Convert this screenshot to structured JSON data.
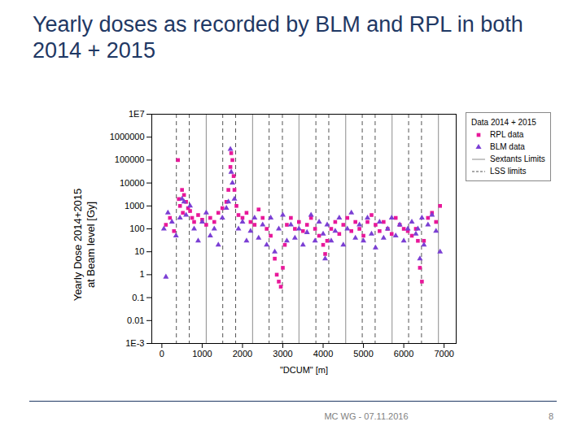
{
  "title": "Yearly doses as recorded by BLM and RPL in both 2014 + 2015",
  "footer": "MC WG - 07.11.2016",
  "page_number": "8",
  "chart_data": {
    "type": "scatter",
    "x_label": "\"DCUM\" [m]",
    "y_label": "Yearly Dose 2014+2015\nat Beam level [Gy]",
    "legend_title": "Data 2014 + 2015",
    "legend": "right",
    "log": "y",
    "grid": false,
    "xlim": [
      -250,
      7300
    ],
    "xticks": [
      0,
      1000,
      2000,
      3000,
      4000,
      5000,
      6000,
      7000
    ],
    "ylim": [
      0.001,
      10000000
    ],
    "yticks": [
      {
        "value": 0.001,
        "label": "1E-3"
      },
      0.01,
      0.1,
      1,
      10,
      100,
      1000,
      10000,
      100000,
      1000000,
      {
        "value": 10000000,
        "label": "1E7"
      }
    ],
    "series": [
      {
        "name": "RPL data",
        "color": "#e8189a",
        "marker": "square",
        "x": [
          100,
          200,
          300,
          400,
          420,
          450,
          500,
          520,
          550,
          600,
          650,
          700,
          750,
          800,
          900,
          1000,
          1100,
          1200,
          1300,
          1400,
          1500,
          1600,
          1650,
          1700,
          1720,
          1750,
          1780,
          1800,
          1850,
          1900,
          2000,
          2100,
          2200,
          2300,
          2400,
          2500,
          2600,
          2700,
          2800,
          2850,
          2900,
          2950,
          3000,
          3050,
          3100,
          3200,
          3300,
          3400,
          3500,
          3600,
          3700,
          3800,
          3900,
          4000,
          4050,
          4100,
          4200,
          4300,
          4400,
          4500,
          4600,
          4700,
          4800,
          4900,
          5000,
          5100,
          5200,
          5300,
          5400,
          5500,
          5600,
          5700,
          5800,
          5900,
          6000,
          6100,
          6200,
          6300,
          6350,
          6400,
          6450,
          6500,
          6600,
          6700,
          6800,
          6900
        ],
        "values": [
          150,
          300,
          80,
          100000,
          2000,
          1000,
          5000,
          500,
          3000,
          1500,
          800,
          600,
          300,
          200,
          400,
          250,
          150,
          300,
          200,
          500,
          800,
          1500,
          5000,
          50000,
          200000,
          100000,
          20000,
          5000,
          1000,
          400,
          300,
          500,
          200,
          150,
          700,
          300,
          100,
          50,
          5,
          1,
          0.5,
          0.3,
          2,
          20,
          150,
          300,
          100,
          200,
          80,
          150,
          300,
          100,
          50,
          20,
          8,
          30,
          100,
          200,
          60,
          150,
          300,
          80,
          200,
          100,
          50,
          200,
          400,
          150,
          80,
          200,
          100,
          60,
          300,
          150,
          100,
          80,
          50,
          100,
          30,
          2,
          0.5,
          30,
          300,
          500,
          200,
          1000
        ]
      },
      {
        "name": "BLM data",
        "color": "#7b3fd4",
        "marker": "triangle",
        "x": [
          50,
          100,
          150,
          250,
          350,
          450,
          500,
          550,
          600,
          700,
          800,
          900,
          1000,
          1100,
          1200,
          1300,
          1400,
          1500,
          1600,
          1650,
          1700,
          1720,
          1750,
          1800,
          1900,
          2000,
          2100,
          2200,
          2300,
          2400,
          2500,
          2600,
          2700,
          2800,
          2900,
          3000,
          3100,
          3200,
          3300,
          3400,
          3500,
          3600,
          3700,
          3800,
          3900,
          4000,
          4050,
          4100,
          4200,
          4300,
          4400,
          4500,
          4600,
          4700,
          4800,
          4900,
          5000,
          5100,
          5200,
          5300,
          5400,
          5500,
          5600,
          5700,
          5800,
          5900,
          6000,
          6100,
          6200,
          6300,
          6350,
          6400,
          6450,
          6500,
          6600,
          6700,
          6800,
          6900
        ],
        "values": [
          100,
          0.8,
          500,
          200,
          50,
          300,
          2000,
          1500,
          400,
          1000,
          100,
          30,
          200,
          500,
          50,
          100,
          20,
          300,
          800,
          1500,
          300000,
          30000,
          10000,
          2000,
          100,
          200,
          30,
          80,
          300,
          40,
          150,
          20,
          300,
          10,
          100,
          400,
          30,
          150,
          40,
          100,
          20,
          70,
          400,
          30,
          200,
          60,
          5,
          150,
          30,
          80,
          300,
          20,
          100,
          500,
          40,
          150,
          30,
          300,
          60,
          15,
          200,
          40,
          100,
          300,
          50,
          150,
          30,
          100,
          200,
          60,
          100,
          5,
          300,
          20,
          150,
          400,
          80,
          10
        ]
      }
    ],
    "vlines": [
      {
        "name": "Sextants Limits",
        "color": "#8c8c8c",
        "line_style": "solid",
        "values": [
          1100,
          2250,
          3400,
          4560,
          5710,
          6860
        ]
      },
      {
        "name": "LSS limits",
        "color": "#555555",
        "line_style": "dashed",
        "values": [
          360,
          680,
          1510,
          1830,
          2660,
          2990,
          3820,
          4140,
          4970,
          5290,
          6120,
          6440
        ]
      }
    ]
  }
}
